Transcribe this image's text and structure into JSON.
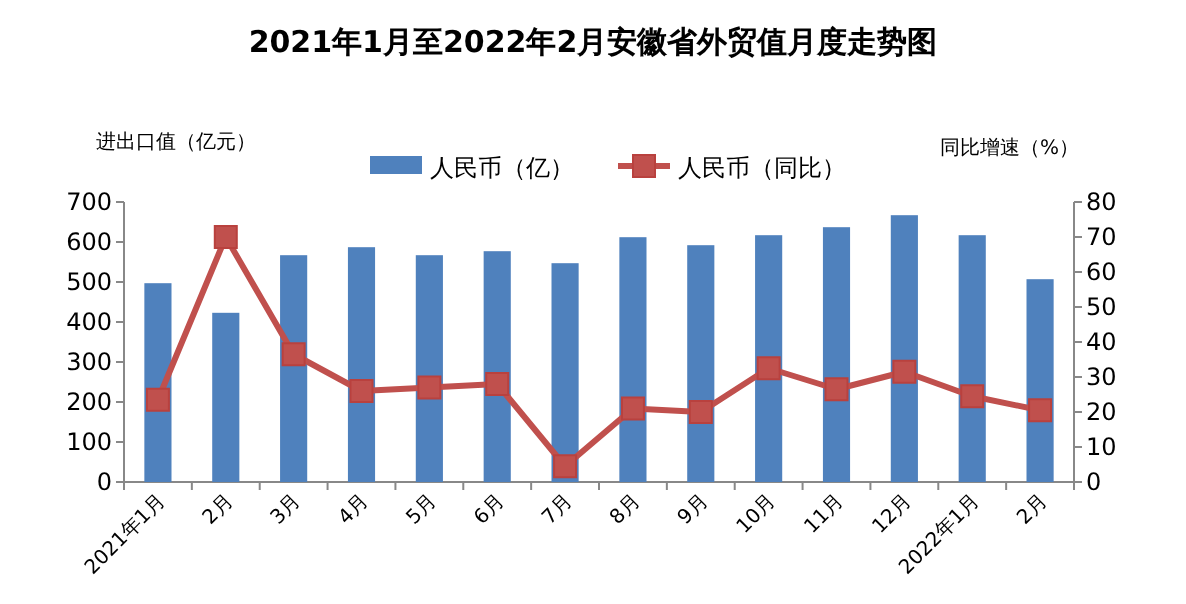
{
  "chart_data": {
    "type": "bar",
    "title": "2021年1月至2022年2月安徽省外贸值月度走势图",
    "ylabel": "进出口值（亿元）",
    "y2label": "同比增速（%）",
    "categories": [
      "2021年1月",
      "2月",
      "3月",
      "4月",
      "5月",
      "6月",
      "7月",
      "8月",
      "9月",
      "10月",
      "11月",
      "12月",
      "2022年1月",
      "2月"
    ],
    "series": [
      {
        "name": "人民币（亿）",
        "color": "#4f81bd",
        "values": [
          497,
          423,
          567,
          587,
          567,
          577,
          547,
          612,
          592,
          617,
          637,
          667,
          617,
          507
        ]
      },
      {
        "name": "人民币（同比）",
        "type": "line",
        "axis": "y2",
        "color": "#c0504d",
        "marker": "square",
        "values": [
          23.5,
          70,
          36.5,
          26,
          27,
          28,
          4.5,
          21,
          20,
          32.5,
          26.5,
          31.5,
          24.5,
          20.5
        ]
      }
    ],
    "ylim": [
      0,
      700
    ],
    "yticks": [
      0,
      100,
      200,
      300,
      400,
      500,
      600,
      700
    ],
    "y2lim": [
      0,
      80
    ],
    "y2ticks": [
      0,
      10,
      20,
      30,
      40,
      50,
      60,
      70,
      80
    ],
    "legend": "top",
    "grid": false
  }
}
